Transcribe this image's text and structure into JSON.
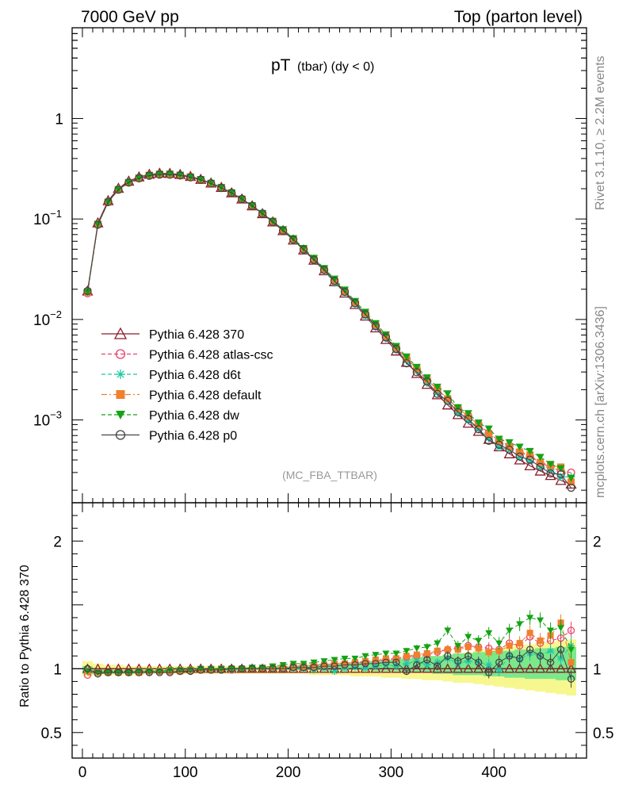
{
  "header": {
    "left": "7000 GeV pp",
    "right": "Top (parton level)"
  },
  "title": {
    "main": "pT",
    "sub": "(tbar) (dy < 0)"
  },
  "side_text": {
    "rivet": "Rivet 3.1.10, ≥ 2.2M events",
    "mcplots": "mcplots.cern.ch [arXiv:1306.3436]"
  },
  "analysis_label": "(MC_FBA_TTBAR)",
  "ratio_ylabel": "Ratio to Pythia 6.428 370",
  "colors": {
    "s370": "#8b1a2b",
    "atlas": "#e8436a",
    "d6t": "#1fc8a8",
    "default": "#f07f2e",
    "dw": "#14a314",
    "p0": "#444444",
    "band_yellow": "#f7f78f",
    "band_green": "#7be88a"
  },
  "chart_data": {
    "type": "line",
    "title": "pT (tbar) (dy < 0)",
    "xlabel": "",
    "ylabel": "",
    "xlim": [
      -10,
      490
    ],
    "main_ylim": [
      0.00015,
      8
    ],
    "main_yscale": "log",
    "ratio_ylim": [
      0.3,
      2.3
    ],
    "x_ticks": [
      "0",
      "100",
      "200",
      "300",
      "400"
    ],
    "y_ticks": [
      "10^-3",
      "10^-2",
      "10^-1",
      "1"
    ],
    "ratio_ticks": [
      "0.5",
      "1",
      "2"
    ],
    "x": [
      5,
      15,
      25,
      35,
      45,
      55,
      65,
      75,
      85,
      95,
      105,
      115,
      125,
      135,
      145,
      155,
      165,
      175,
      185,
      195,
      205,
      215,
      225,
      235,
      245,
      255,
      265,
      275,
      285,
      295,
      305,
      315,
      325,
      335,
      345,
      355,
      365,
      375,
      385,
      395,
      405,
      415,
      425,
      435,
      445,
      455,
      465,
      475
    ],
    "reference": [
      0.0192,
      0.0915,
      0.152,
      0.202,
      0.238,
      0.262,
      0.278,
      0.285,
      0.284,
      0.277,
      0.265,
      0.248,
      0.228,
      0.206,
      0.182,
      0.158,
      0.135,
      0.113,
      0.0935,
      0.0765,
      0.0617,
      0.0492,
      0.0389,
      0.0305,
      0.0237,
      0.0183,
      0.0141,
      0.0108,
      0.00825,
      0.00632,
      0.00485,
      0.00374,
      0.0029,
      0.00226,
      0.00178,
      0.00141,
      0.00113,
      0.00093,
      0.00077,
      0.00064,
      0.00054,
      0.00046,
      0.0004,
      0.00035,
      0.00031,
      0.00028,
      0.00025,
      0.00023
    ],
    "series": [
      {
        "name": "Pythia 6.428 370",
        "color": "s370",
        "marker": "triangle-open",
        "line": "solid",
        "ratio": [
          1,
          1,
          1,
          1,
          1,
          1,
          1,
          1,
          1,
          1,
          1,
          1,
          1,
          1,
          1,
          1,
          1,
          1,
          1,
          1,
          1,
          1,
          1,
          1,
          1,
          1,
          1,
          1,
          1,
          1,
          1,
          1,
          1,
          1,
          1,
          1,
          1,
          1,
          1,
          1,
          1,
          1,
          1,
          1,
          1,
          1,
          1,
          1
        ]
      },
      {
        "name": "Pythia 6.428 atlas-csc",
        "color": "atlas",
        "marker": "circle-open",
        "line": "dashed",
        "ratio": [
          0.95,
          0.96,
          0.97,
          0.97,
          0.97,
          0.98,
          0.98,
          0.98,
          0.98,
          0.98,
          0.99,
          0.99,
          0.99,
          0.99,
          0.99,
          1.0,
          1.0,
          1.0,
          1.01,
          1.01,
          1.02,
          1.02,
          1.03,
          1.03,
          1.04,
          1.04,
          1.05,
          1.05,
          1.06,
          1.07,
          1.08,
          1.09,
          1.1,
          1.11,
          1.13,
          1.15,
          1.16,
          1.18,
          1.17,
          1.16,
          1.15,
          1.2,
          1.18,
          1.25,
          1.2,
          1.22,
          1.24,
          1.3
        ]
      },
      {
        "name": "Pythia 6.428 d6t",
        "color": "d6t",
        "marker": "star",
        "line": "dashed",
        "ratio": [
          0.98,
          0.97,
          0.97,
          0.97,
          0.97,
          0.97,
          0.97,
          0.98,
          0.98,
          0.98,
          0.98,
          0.99,
          0.99,
          0.99,
          0.99,
          1.0,
          1.0,
          1.0,
          1.0,
          1.0,
          1.0,
          1.0,
          0.99,
          1.0,
          0.98,
          1.0,
          1.01,
          1.0,
          1.02,
          1.03,
          1.02,
          1.04,
          1.06,
          1.03,
          1.05,
          1.08,
          1.04,
          1.06,
          1.05,
          1.03,
          0.99,
          1.1,
          1.07,
          1.12,
          1.1,
          1.14,
          1.08,
          1.18
        ]
      },
      {
        "name": "Pythia 6.428 default",
        "color": "default",
        "marker": "square",
        "line": "dashdot",
        "ratio": [
          0.98,
          0.97,
          0.97,
          0.97,
          0.97,
          0.97,
          0.98,
          0.98,
          0.98,
          0.98,
          0.99,
          0.99,
          0.99,
          1.0,
          1.0,
          1.0,
          1.0,
          1.0,
          1.01,
          1.01,
          1.02,
          1.02,
          1.02,
          1.03,
          1.04,
          1.04,
          1.05,
          1.06,
          1.07,
          1.08,
          1.08,
          1.1,
          1.11,
          1.12,
          1.14,
          1.15,
          1.15,
          1.17,
          1.16,
          1.13,
          1.14,
          1.18,
          1.2,
          1.28,
          1.22,
          1.26,
          1.36,
          1.05
        ]
      },
      {
        "name": "Pythia 6.428 dw",
        "color": "dw",
        "marker": "triangle-down",
        "line": "dashed",
        "ratio": [
          0.98,
          0.97,
          0.97,
          0.97,
          0.97,
          0.98,
          0.98,
          0.98,
          0.99,
          0.99,
          0.99,
          1.0,
          1.0,
          1.0,
          1.0,
          1.0,
          1.01,
          1.01,
          1.02,
          1.03,
          1.04,
          1.04,
          1.05,
          1.06,
          1.07,
          1.08,
          1.08,
          1.1,
          1.11,
          1.12,
          1.12,
          1.14,
          1.16,
          1.17,
          1.2,
          1.3,
          1.18,
          1.25,
          1.22,
          1.28,
          1.2,
          1.3,
          1.35,
          1.4,
          1.38,
          1.3,
          1.32,
          1.15
        ]
      },
      {
        "name": "Pythia 6.428 p0",
        "color": "p0",
        "marker": "circle-open",
        "line": "solid",
        "ratio": [
          1.0,
          0.96,
          0.97,
          0.97,
          0.97,
          0.97,
          0.97,
          0.97,
          0.97,
          0.98,
          0.98,
          0.99,
          0.99,
          0.99,
          1.0,
          1.0,
          1.0,
          1.0,
          1.0,
          1.0,
          1.01,
          1.01,
          1.01,
          1.02,
          1.02,
          1.03,
          1.03,
          1.04,
          1.04,
          1.05,
          1.05,
          0.98,
          1.03,
          1.07,
          1.02,
          1.1,
          1.06,
          1.1,
          1.05,
          0.97,
          1.05,
          1.1,
          1.08,
          1.15,
          1.1,
          1.05,
          1.15,
          0.92
        ]
      }
    ],
    "bands": {
      "yellow_lo": [
        0.94,
        0.95,
        0.95,
        0.95,
        0.95,
        0.95,
        0.96,
        0.96,
        0.96,
        0.96,
        0.96,
        0.96,
        0.96,
        0.96,
        0.96,
        0.96,
        0.96,
        0.96,
        0.96,
        0.96,
        0.96,
        0.96,
        0.95,
        0.95,
        0.95,
        0.95,
        0.94,
        0.94,
        0.94,
        0.93,
        0.93,
        0.92,
        0.92,
        0.91,
        0.91,
        0.9,
        0.89,
        0.89,
        0.88,
        0.87,
        0.86,
        0.85,
        0.84,
        0.83,
        0.82,
        0.81,
        0.8,
        0.79
      ],
      "yellow_hi": [
        1.06,
        1.04,
        1.03,
        1.03,
        1.02,
        1.02,
        1.02,
        1.02,
        1.02,
        1.02,
        1.02,
        1.02,
        1.02,
        1.02,
        1.02,
        1.02,
        1.02,
        1.02,
        1.02,
        1.02,
        1.02,
        1.03,
        1.03,
        1.03,
        1.03,
        1.04,
        1.04,
        1.05,
        1.05,
        1.06,
        1.06,
        1.07,
        1.08,
        1.09,
        1.1,
        1.11,
        1.12,
        1.13,
        1.14,
        1.15,
        1.16,
        1.17,
        1.18,
        1.19,
        1.2,
        1.21,
        1.22,
        1.23
      ],
      "green_lo": [
        0.96,
        0.96,
        0.96,
        0.96,
        0.96,
        0.96,
        0.97,
        0.97,
        0.97,
        0.97,
        0.97,
        0.98,
        0.98,
        0.98,
        0.98,
        0.98,
        0.99,
        0.99,
        0.99,
        0.99,
        0.99,
        0.99,
        0.99,
        0.99,
        0.99,
        0.99,
        0.99,
        0.99,
        0.98,
        0.98,
        0.98,
        0.97,
        0.97,
        0.97,
        0.96,
        0.96,
        0.95,
        0.95,
        0.95,
        0.94,
        0.94,
        0.93,
        0.93,
        0.92,
        0.92,
        0.92,
        0.91,
        0.91
      ],
      "green_hi": [
        1.02,
        1.0,
        1.0,
        0.99,
        0.99,
        0.99,
        0.99,
        0.99,
        1.0,
        1.0,
        1.0,
        1.0,
        1.0,
        1.0,
        1.01,
        1.01,
        1.01,
        1.01,
        1.02,
        1.02,
        1.02,
        1.03,
        1.03,
        1.04,
        1.04,
        1.05,
        1.05,
        1.06,
        1.06,
        1.07,
        1.08,
        1.08,
        1.09,
        1.1,
        1.1,
        1.11,
        1.12,
        1.12,
        1.13,
        1.13,
        1.14,
        1.14,
        1.15,
        1.15,
        1.16,
        1.16,
        1.17,
        1.17
      ]
    },
    "legend_position": "center-left"
  }
}
